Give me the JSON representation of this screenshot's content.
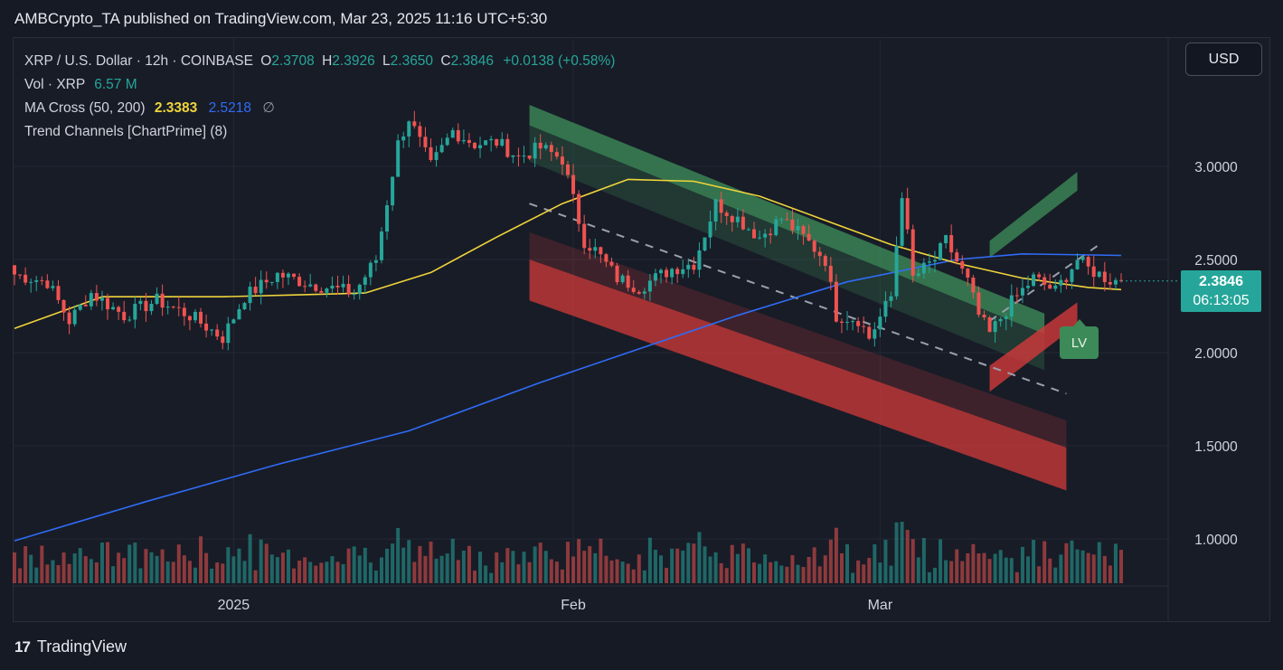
{
  "header": {
    "published": "AMBCrypto_TA published on TradingView.com, Mar 23, 2025 11:16 UTC+5:30"
  },
  "legend": {
    "symbol": "XRP / U.S. Dollar · 12h · COINBASE",
    "o_label": "O",
    "o": "2.3708",
    "h_label": "H",
    "h": "2.3926",
    "l_label": "L",
    "l": "2.3650",
    "c_label": "C",
    "c": "2.3846",
    "change": "+0.0138 (+0.58%)",
    "vol_label": "Vol · XRP",
    "vol": "6.57 M",
    "ma_label": "MA Cross (50, 200)",
    "ma50": "2.3383",
    "ma200": "2.5218",
    "ma_extra": "∅",
    "trend_label": "Trend Channels [ChartPrime] (8)"
  },
  "currency_button": "USD",
  "price_tag": {
    "price": "2.3846",
    "countdown": "06:13:05"
  },
  "lv_badge": "LV",
  "footer": {
    "brand": "TradingView",
    "logo_icon": "tradingview-logo-icon"
  },
  "colors": {
    "up": "#26a69a",
    "down": "#ef5350",
    "ma50": "#f0d43b",
    "ma200": "#2f6cf6",
    "channel_green": "#3c8a58",
    "channel_red": "#d23a3a"
  },
  "chart_data": {
    "type": "candlestick",
    "y_axis": {
      "ticks": [
        "1.0000",
        "1.5000",
        "2.0000",
        "2.5000",
        "3.0000"
      ],
      "tick_values": [
        1.0,
        1.5,
        2.0,
        2.5,
        3.0
      ]
    },
    "x_axis": {
      "labels": [
        "2025",
        "Feb",
        "Mar"
      ]
    },
    "x_range": [
      "2024-12-12",
      "2025-03-23"
    ],
    "y_range": [
      0.75,
      3.45
    ],
    "close_series": [
      {
        "t": "2024-12-12",
        "c": 2.42
      },
      {
        "t": "2024-12-15",
        "c": 2.38
      },
      {
        "t": "2024-12-17",
        "c": 2.17
      },
      {
        "t": "2024-12-19",
        "c": 2.32
      },
      {
        "t": "2024-12-22",
        "c": 2.2
      },
      {
        "t": "2024-12-25",
        "c": 2.28
      },
      {
        "t": "2024-12-28",
        "c": 2.2
      },
      {
        "t": "2024-12-31",
        "c": 2.08
      },
      {
        "t": "2025-01-02",
        "c": 2.3
      },
      {
        "t": "2025-01-05",
        "c": 2.42
      },
      {
        "t": "2025-01-08",
        "c": 2.37
      },
      {
        "t": "2025-01-12",
        "c": 2.32
      },
      {
        "t": "2025-01-14",
        "c": 2.5
      },
      {
        "t": "2025-01-16",
        "c": 3.12
      },
      {
        "t": "2025-01-17",
        "c": 3.26
      },
      {
        "t": "2025-01-19",
        "c": 3.0
      },
      {
        "t": "2025-01-21",
        "c": 3.19
      },
      {
        "t": "2025-01-23",
        "c": 3.12
      },
      {
        "t": "2025-01-25",
        "c": 3.13
      },
      {
        "t": "2025-01-27",
        "c": 3.05
      },
      {
        "t": "2025-01-29",
        "c": 3.1
      },
      {
        "t": "2025-01-31",
        "c": 3.04
      },
      {
        "t": "2025-02-02",
        "c": 2.6
      },
      {
        "t": "2025-02-03",
        "c": 2.55
      },
      {
        "t": "2025-02-05",
        "c": 2.4
      },
      {
        "t": "2025-02-07",
        "c": 2.35
      },
      {
        "t": "2025-02-10",
        "c": 2.45
      },
      {
        "t": "2025-02-12",
        "c": 2.48
      },
      {
        "t": "2025-02-14",
        "c": 2.8
      },
      {
        "t": "2025-02-16",
        "c": 2.72
      },
      {
        "t": "2025-02-18",
        "c": 2.62
      },
      {
        "t": "2025-02-20",
        "c": 2.72
      },
      {
        "t": "2025-02-22",
        "c": 2.62
      },
      {
        "t": "2025-02-24",
        "c": 2.5
      },
      {
        "t": "2025-02-25",
        "c": 2.2
      },
      {
        "t": "2025-02-27",
        "c": 2.18
      },
      {
        "t": "2025-02-28",
        "c": 2.08
      },
      {
        "t": "2025-03-02",
        "c": 2.3
      },
      {
        "t": "2025-03-03",
        "c": 2.86
      },
      {
        "t": "2025-03-04",
        "c": 2.4
      },
      {
        "t": "2025-03-06",
        "c": 2.5
      },
      {
        "t": "2025-03-07",
        "c": 2.6
      },
      {
        "t": "2025-03-09",
        "c": 2.38
      },
      {
        "t": "2025-03-10",
        "c": 2.2
      },
      {
        "t": "2025-03-11",
        "c": 2.1
      },
      {
        "t": "2025-03-13",
        "c": 2.27
      },
      {
        "t": "2025-03-15",
        "c": 2.4
      },
      {
        "t": "2025-03-17",
        "c": 2.33
      },
      {
        "t": "2025-03-19",
        "c": 2.5
      },
      {
        "t": "2025-03-20",
        "c": 2.45
      },
      {
        "t": "2025-03-22",
        "c": 2.39
      },
      {
        "t": "2025-03-23",
        "c": 2.3846
      }
    ],
    "ma50": [
      {
        "t": "2024-12-12",
        "v": 2.13
      },
      {
        "t": "2024-12-20",
        "v": 2.3
      },
      {
        "t": "2024-12-31",
        "v": 2.3
      },
      {
        "t": "2025-01-07",
        "v": 2.31
      },
      {
        "t": "2025-01-13",
        "v": 2.32
      },
      {
        "t": "2025-01-19",
        "v": 2.43
      },
      {
        "t": "2025-01-25",
        "v": 2.62
      },
      {
        "t": "2025-01-31",
        "v": 2.8
      },
      {
        "t": "2025-02-06",
        "v": 2.93
      },
      {
        "t": "2025-02-12",
        "v": 2.92
      },
      {
        "t": "2025-02-18",
        "v": 2.84
      },
      {
        "t": "2025-02-24",
        "v": 2.71
      },
      {
        "t": "2025-03-02",
        "v": 2.58
      },
      {
        "t": "2025-03-08",
        "v": 2.48
      },
      {
        "t": "2025-03-14",
        "v": 2.4
      },
      {
        "t": "2025-03-20",
        "v": 2.35
      },
      {
        "t": "2025-03-23",
        "v": 2.3383
      }
    ],
    "ma200": [
      {
        "t": "2024-12-12",
        "v": 0.99
      },
      {
        "t": "2024-12-24",
        "v": 1.2
      },
      {
        "t": "2025-01-05",
        "v": 1.4
      },
      {
        "t": "2025-01-17",
        "v": 1.58
      },
      {
        "t": "2025-01-29",
        "v": 1.84
      },
      {
        "t": "2025-02-07",
        "v": 2.02
      },
      {
        "t": "2025-02-16",
        "v": 2.2
      },
      {
        "t": "2025-02-26",
        "v": 2.38
      },
      {
        "t": "2025-03-08",
        "v": 2.5
      },
      {
        "t": "2025-03-14",
        "v": 2.53
      },
      {
        "t": "2025-03-23",
        "v": 2.5218
      }
    ],
    "channels": {
      "green_upper_band": {
        "t0": "2025-01-28",
        "t1": "2025-03-16",
        "top": [
          3.33,
          2.21
        ],
        "bottom": [
          3.22,
          2.1
        ]
      },
      "red_lower_band": {
        "t0": "2025-01-28",
        "t1": "2025-03-18",
        "top": [
          2.5,
          1.49
        ],
        "bottom": [
          2.28,
          1.26
        ]
      },
      "dashed_mid": {
        "t0": "2025-01-28",
        "t1": "2025-03-18",
        "v": [
          2.8,
          1.78
        ]
      },
      "green_new": {
        "t0": "2025-03-11",
        "t1": "2025-03-19",
        "top": [
          2.6,
          2.97
        ],
        "bottom": [
          2.51,
          2.87
        ]
      },
      "red_new": {
        "t0": "2025-03-11",
        "t1": "2025-03-19",
        "top": [
          1.93,
          2.27
        ],
        "bottom": [
          1.79,
          2.15
        ]
      },
      "dashed_new": {
        "t0": "2025-03-11",
        "t1": "2025-03-21",
        "v": [
          2.17,
          2.58
        ]
      }
    }
  }
}
